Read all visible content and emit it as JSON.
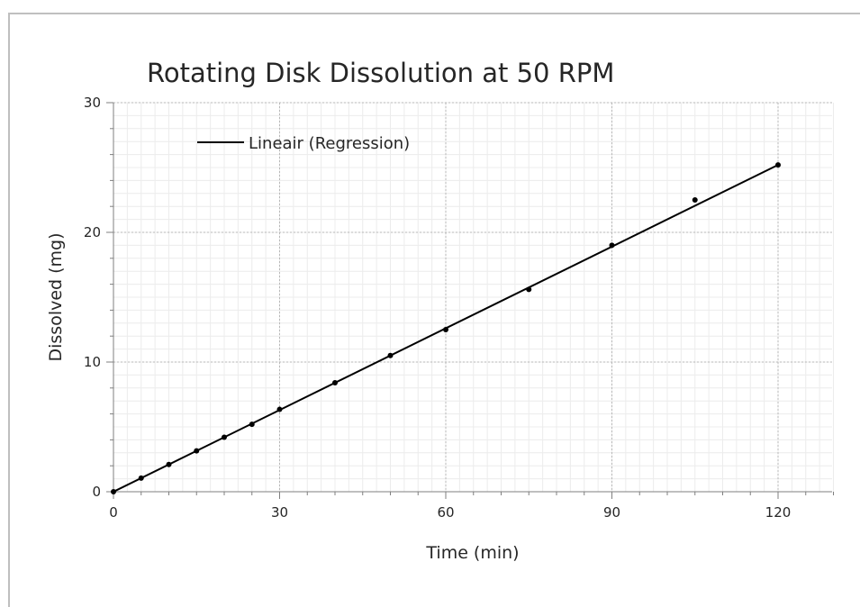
{
  "chart_data": {
    "type": "scatter",
    "title": "Rotating Disk Dissolution at 50 RPM",
    "xlabel": "Time (min)",
    "ylabel": "Dissolved (mg)",
    "xlim": [
      0,
      130
    ],
    "ylim": [
      0,
      30
    ],
    "x_ticks": [
      0,
      30,
      60,
      90,
      120
    ],
    "y_ticks": [
      0,
      10,
      20,
      30
    ],
    "x_tick_labels": [
      "0",
      "30",
      "60",
      "90",
      "120"
    ],
    "y_tick_labels": [
      "0",
      "10",
      "20",
      "30"
    ],
    "grid": true,
    "legend_position": "top-left",
    "series": [
      {
        "points": [
          {
            "x": 0,
            "y": 0
          },
          {
            "x": 5,
            "y": 1.05
          },
          {
            "x": 10,
            "y": 2.1
          },
          {
            "x": 15,
            "y": 3.15
          },
          {
            "x": 20,
            "y": 4.2
          },
          {
            "x": 25,
            "y": 5.2
          },
          {
            "x": 30,
            "y": 6.35
          },
          {
            "x": 40,
            "y": 8.4
          },
          {
            "x": 50,
            "y": 10.5
          },
          {
            "x": 60,
            "y": 12.5
          },
          {
            "x": 75,
            "y": 15.6
          },
          {
            "x": 90,
            "y": 19.0
          },
          {
            "x": 105,
            "y": 22.5
          },
          {
            "x": 120,
            "y": 25.2
          }
        ],
        "color": "#000000"
      },
      {
        "name": "Lineair (Regression)",
        "line": {
          "x_start": 0,
          "y_start": 0,
          "x_end": 120,
          "y_end": 25.2
        },
        "color": "#000000"
      }
    ]
  }
}
